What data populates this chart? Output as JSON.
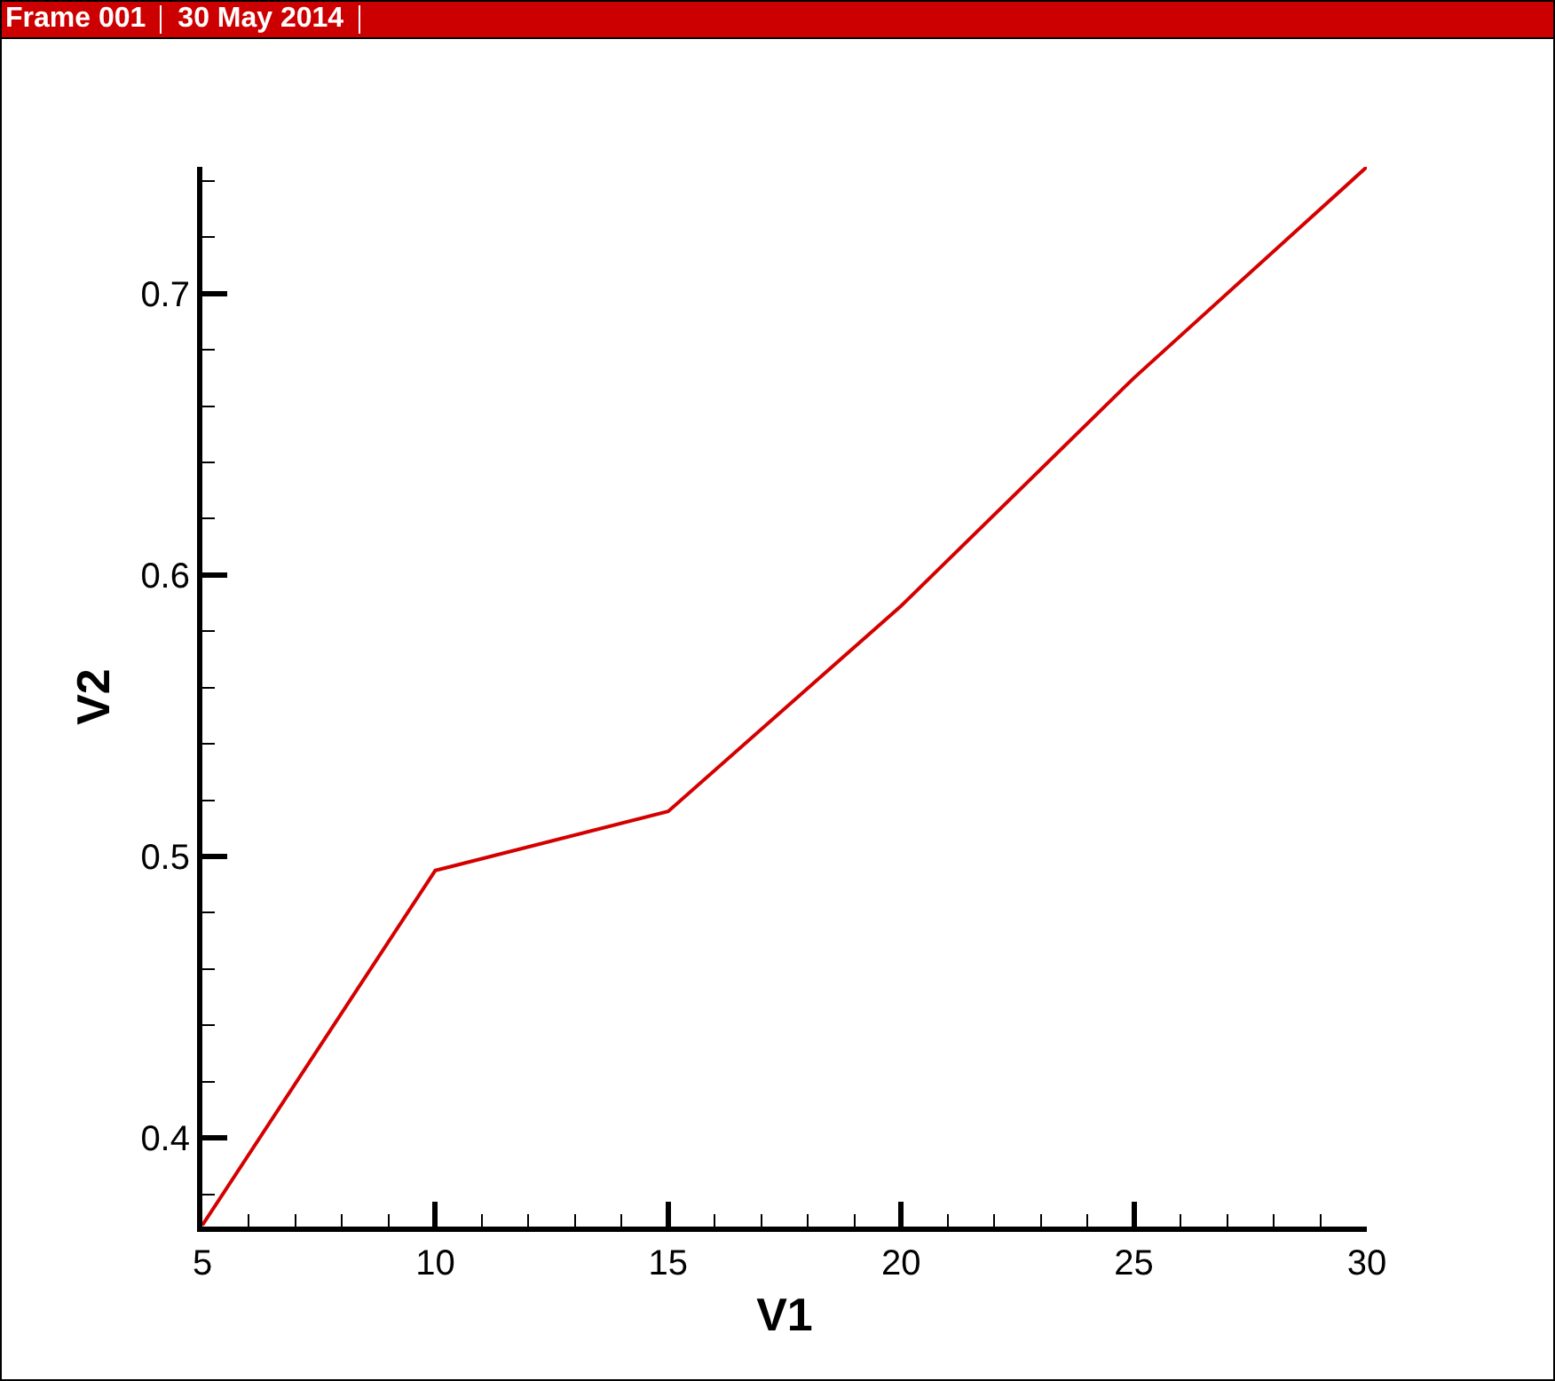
{
  "chart_data": {
    "type": "line",
    "annotations": [
      "Frame 001",
      "30 May 2014"
    ],
    "xlabel": "V1",
    "ylabel": "V2",
    "x": [
      5,
      10,
      15,
      20,
      25,
      30
    ],
    "values": [
      0.369,
      0.495,
      0.516,
      0.589,
      0.67,
      0.745
    ],
    "color": "#d40000",
    "line_style": "solid",
    "grid": false,
    "xlim": [
      5,
      30
    ],
    "ylim": [
      0.3685,
      0.745
    ],
    "xticks": [
      5,
      {
        "value": 6,
        "label": null
      },
      {
        "value": 7,
        "label": null
      },
      {
        "value": 8,
        "label": null
      },
      {
        "value": 9,
        "label": null
      },
      10,
      {
        "value": 11,
        "label": null
      },
      {
        "value": 12,
        "label": null
      },
      {
        "value": 13,
        "label": null
      },
      {
        "value": 14,
        "label": null
      },
      15,
      {
        "value": 16,
        "label": null
      },
      {
        "value": 17,
        "label": null
      },
      {
        "value": 18,
        "label": null
      },
      {
        "value": 19,
        "label": null
      },
      20,
      {
        "value": 21,
        "label": null
      },
      {
        "value": 22,
        "label": null
      },
      {
        "value": 23,
        "label": null
      },
      {
        "value": 24,
        "label": null
      },
      25,
      {
        "value": 26,
        "label": null
      },
      {
        "value": 27,
        "label": null
      },
      {
        "value": 28,
        "label": null
      },
      {
        "value": 29,
        "label": null
      },
      30
    ],
    "yticks": [
      {
        "value": 0.38,
        "label": null
      },
      0.4,
      {
        "value": 0.42,
        "label": null
      },
      {
        "value": 0.44,
        "label": null
      },
      {
        "value": 0.46,
        "label": null
      },
      {
        "value": 0.48,
        "label": null
      },
      0.5,
      {
        "value": 0.52,
        "label": null
      },
      {
        "value": 0.54,
        "label": null
      },
      {
        "value": 0.56,
        "label": null
      },
      {
        "value": 0.58,
        "label": null
      },
      0.6,
      {
        "value": 0.62,
        "label": null
      },
      {
        "value": 0.64,
        "label": null
      },
      {
        "value": 0.66,
        "label": null
      },
      {
        "value": 0.68,
        "label": null
      },
      0.7,
      {
        "value": 0.72,
        "label": null
      },
      {
        "value": 0.74,
        "label": null
      }
    ]
  }
}
